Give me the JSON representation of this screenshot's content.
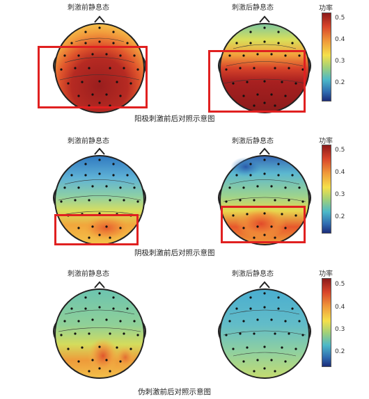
{
  "panels": [
    {
      "row": "anode",
      "left_title": "刺激前静息态",
      "right_title": "刺激后静息态",
      "caption": "阳极刺激前后对照示意图",
      "colorbar_title": "功率",
      "colorbar_ticks": [
        "0.5",
        "0.4",
        "0.3",
        "0.2"
      ]
    },
    {
      "row": "cathode",
      "left_title": "刺激前静息态",
      "right_title": "刺激后静息态",
      "caption": "阴极刺激前后对照示意图",
      "colorbar_title": "功率",
      "colorbar_ticks": [
        "0.5",
        "0.4",
        "0.3",
        "0.2"
      ]
    },
    {
      "row": "sham",
      "left_title": "刺激前静息态",
      "right_title": "刺激后静息态",
      "caption": "伪刺激前后对照示意图",
      "colorbar_title": "功率",
      "colorbar_ticks": [
        "0.5",
        "0.4",
        "0.3",
        "0.2"
      ]
    }
  ],
  "colors": {
    "highlight": "#e02020",
    "colormap": [
      "#8b1a1a",
      "#d8442a",
      "#f09a3a",
      "#f5e04a",
      "#9fd07a",
      "#4cb8c8",
      "#2f6bb0",
      "#1b2d7a"
    ]
  }
}
